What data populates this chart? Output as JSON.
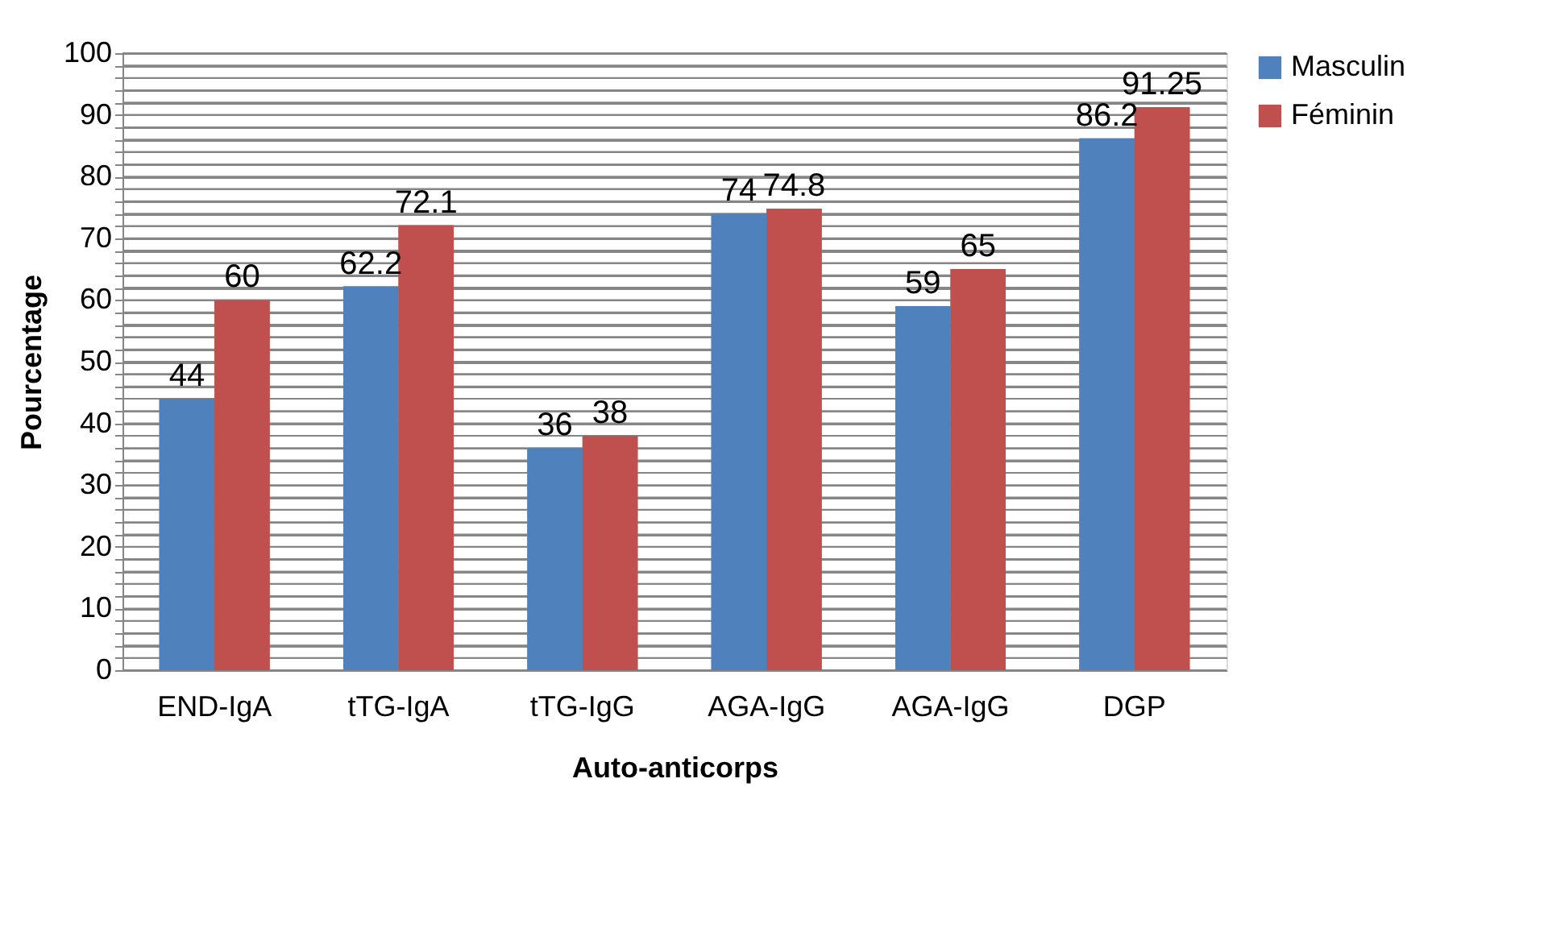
{
  "chart_data": {
    "type": "bar",
    "xlabel": "Auto-anticorps",
    "ylabel": "Pourcentage",
    "categories": [
      "END-IgA",
      "tTG-IgA",
      "tTG-IgG",
      "AGA-IgG",
      "AGA-IgG",
      "DGP"
    ],
    "series": [
      {
        "name": "Masculin",
        "color": "#4f81bd",
        "values": [
          44,
          62.2,
          36,
          74,
          59,
          86.2
        ]
      },
      {
        "name": "Féminin",
        "color": "#c0504d",
        "values": [
          60,
          72.1,
          38,
          74.8,
          65,
          91.25
        ]
      }
    ],
    "ylim": [
      0,
      100
    ],
    "yticks": [
      0,
      {
        "value": 2,
        "label": null
      },
      {
        "value": 4,
        "label": null
      },
      {
        "value": 6,
        "label": null
      },
      {
        "value": 8,
        "label": null
      },
      10,
      {
        "value": 12,
        "label": null
      },
      {
        "value": 14,
        "label": null
      },
      {
        "value": 16,
        "label": null
      },
      {
        "value": 18,
        "label": null
      },
      20,
      {
        "value": 22,
        "label": null
      },
      {
        "value": 24,
        "label": null
      },
      {
        "value": 26,
        "label": null
      },
      {
        "value": 28,
        "label": null
      },
      30,
      {
        "value": 32,
        "label": null
      },
      {
        "value": 34,
        "label": null
      },
      {
        "value": 36,
        "label": null
      },
      {
        "value": 38,
        "label": null
      },
      40,
      {
        "value": 42,
        "label": null
      },
      {
        "value": 44,
        "label": null
      },
      {
        "value": 46,
        "label": null
      },
      {
        "value": 48,
        "label": null
      },
      50,
      {
        "value": 52,
        "label": null
      },
      {
        "value": 54,
        "label": null
      },
      {
        "value": 56,
        "label": null
      },
      {
        "value": 58,
        "label": null
      },
      60,
      {
        "value": 62,
        "label": null
      },
      {
        "value": 64,
        "label": null
      },
      {
        "value": 66,
        "label": null
      },
      {
        "value": 68,
        "label": null
      },
      70,
      {
        "value": 72,
        "label": null
      },
      {
        "value": 74,
        "label": null
      },
      {
        "value": 76,
        "label": null
      },
      {
        "value": 78,
        "label": null
      },
      80,
      {
        "value": 82,
        "label": null
      },
      {
        "value": 84,
        "label": null
      },
      {
        "value": 86,
        "label": null
      },
      {
        "value": 88,
        "label": null
      },
      90,
      {
        "value": 92,
        "label": null
      },
      {
        "value": 94,
        "label": null
      },
      {
        "value": 96,
        "label": null
      },
      {
        "value": 98,
        "label": null
      },
      100
    ],
    "grid": "y",
    "legend": "right",
    "data_labels": true
  }
}
